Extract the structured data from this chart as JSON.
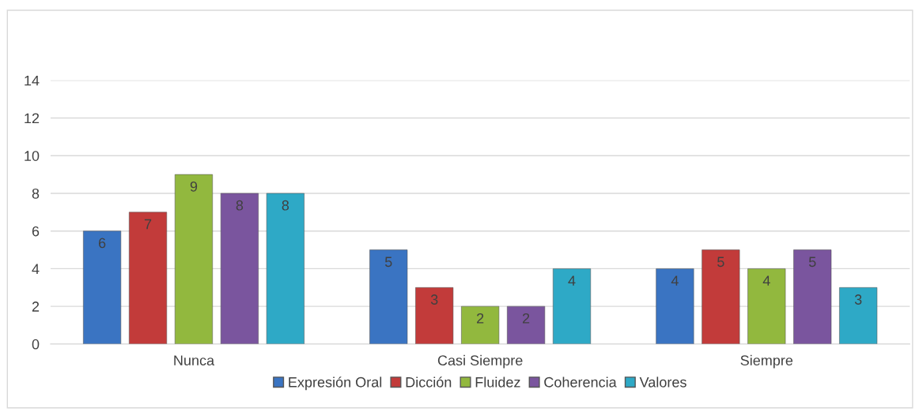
{
  "chart_data": {
    "type": "bar",
    "categories": [
      "Nunca",
      "Casi Siempre",
      "Siempre"
    ],
    "series": [
      {
        "name": "Expresión Oral",
        "color": "#3a74c2",
        "values": [
          6,
          5,
          4
        ]
      },
      {
        "name": "Dicción",
        "color": "#c23b3a",
        "values": [
          7,
          3,
          5
        ]
      },
      {
        "name": "Fluidez",
        "color": "#92b83e",
        "values": [
          9,
          2,
          4
        ]
      },
      {
        "name": "Coherencia",
        "color": "#7a559e",
        "values": [
          8,
          2,
          5
        ]
      },
      {
        "name": "Valores",
        "color": "#2ea9c6",
        "values": [
          8,
          4,
          3
        ]
      }
    ],
    "ylim": [
      0,
      14
    ],
    "yticks": [
      0,
      2,
      4,
      6,
      8,
      10,
      12,
      14
    ],
    "grid": "y",
    "legend": "bottom",
    "data_labels": true
  }
}
